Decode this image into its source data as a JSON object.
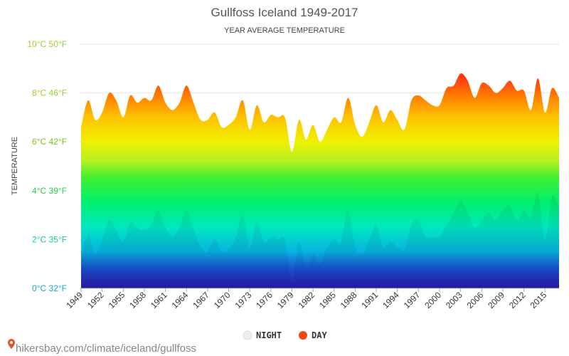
{
  "chart_data": {
    "type": "area",
    "title": "Gullfoss Iceland 1949-2017",
    "subtitle": "YEAR AVERAGE TEMPERATURE",
    "ylabel": "TEMPERATURE",
    "ylim": [
      0,
      10
    ],
    "yticks": [
      {
        "value": 0,
        "label": "0°C 32°F",
        "color": "#1aa3c8"
      },
      {
        "value": 2,
        "label": "2°C 35°F",
        "color": "#12c9a8"
      },
      {
        "value": 4,
        "label": "4°C 39°F",
        "color": "#2ecc40"
      },
      {
        "value": 6,
        "label": "6°C 42°F",
        "color": "#7ac70c"
      },
      {
        "value": 8,
        "label": "8°C 46°F",
        "color": "#9acd32"
      },
      {
        "value": 10,
        "label": "10°C 50°F",
        "color": "#9acd32"
      }
    ],
    "xtick_labels": [
      "1949",
      "1952",
      "1955",
      "1958",
      "1961",
      "1964",
      "1967",
      "1970",
      "1973",
      "1976",
      "1979",
      "1982",
      "1985",
      "1988",
      "1991",
      "1994",
      "1997",
      "2000",
      "2003",
      "2006",
      "2009",
      "2012",
      "2015"
    ],
    "years": [
      1949,
      1950,
      1951,
      1952,
      1953,
      1954,
      1955,
      1956,
      1957,
      1958,
      1959,
      1960,
      1961,
      1962,
      1963,
      1964,
      1965,
      1966,
      1967,
      1968,
      1969,
      1970,
      1971,
      1972,
      1973,
      1974,
      1975,
      1976,
      1977,
      1978,
      1979,
      1980,
      1981,
      1982,
      1983,
      1984,
      1985,
      1986,
      1987,
      1988,
      1989,
      1990,
      1991,
      1992,
      1993,
      1994,
      1995,
      1996,
      1997,
      1998,
      1999,
      2000,
      2001,
      2002,
      2003,
      2004,
      2005,
      2006,
      2007,
      2008,
      2009,
      2010,
      2011,
      2012,
      2013,
      2014,
      2015,
      2016,
      2017
    ],
    "series": [
      {
        "name": "NIGHT",
        "color": "#eeeeee",
        "values": [
          1.3,
          2.2,
          1.4,
          2.0,
          2.8,
          2.4,
          1.9,
          2.7,
          2.5,
          2.4,
          2.6,
          3.2,
          2.5,
          2.1,
          2.5,
          3.2,
          2.4,
          1.7,
          1.5,
          2.0,
          1.5,
          1.6,
          2.1,
          3.0,
          1.7,
          2.7,
          1.9,
          2.1,
          2.0,
          2.0,
          0.3,
          1.9,
          0.9,
          1.4,
          1.0,
          1.7,
          2.0,
          1.9,
          3.2,
          1.7,
          1.4,
          2.0,
          2.6,
          1.7,
          1.9,
          1.7,
          1.6,
          2.6,
          2.8,
          2.1,
          2.1,
          2.1,
          2.6,
          3.1,
          3.6,
          3.1,
          2.5,
          2.8,
          3.1,
          2.8,
          3.2,
          3.4,
          2.8,
          3.2,
          2.9,
          3.9,
          2.0,
          3.8,
          3.3
        ]
      },
      {
        "name": "DAY",
        "color": "#f04a10",
        "values": [
          6.6,
          7.7,
          6.9,
          7.2,
          8.0,
          7.7,
          7.0,
          7.9,
          7.6,
          7.8,
          7.7,
          8.3,
          7.6,
          7.3,
          7.6,
          8.3,
          7.6,
          6.9,
          6.9,
          7.2,
          6.6,
          6.7,
          7.0,
          7.7,
          6.5,
          7.5,
          6.8,
          7.1,
          7.0,
          7.0,
          5.6,
          6.9,
          6.1,
          6.7,
          6.0,
          6.5,
          7.0,
          6.8,
          7.8,
          6.7,
          6.2,
          6.8,
          7.5,
          6.8,
          7.3,
          6.9,
          6.5,
          7.7,
          7.9,
          7.7,
          7.5,
          7.5,
          8.2,
          8.3,
          8.8,
          8.5,
          7.8,
          8.4,
          8.3,
          8.0,
          8.2,
          8.5,
          8.1,
          8.1,
          7.3,
          8.6,
          7.2,
          8.2,
          7.8
        ]
      }
    ],
    "legend": {
      "placement": "bottom-center",
      "items": [
        {
          "label": "NIGHT",
          "color": "#eeeeee"
        },
        {
          "label": "DAY",
          "color": "#f04a10"
        }
      ]
    },
    "grid": true
  },
  "watermark": {
    "text": "hikersbay.com/climate/iceland/gullfoss",
    "pin_color": "#e8542a"
  }
}
